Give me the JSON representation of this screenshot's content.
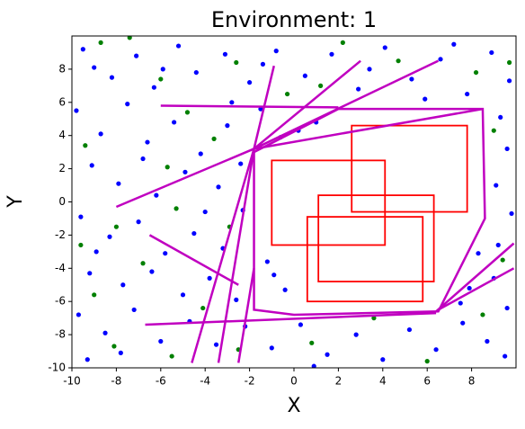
{
  "chart_data": {
    "type": "scatter",
    "title": "Environment: 1",
    "x_label": "X",
    "y_label": "Y",
    "xlim": [
      -10,
      10
    ],
    "ylim": [
      -10,
      10
    ],
    "xticks": [
      -10,
      -8,
      -6,
      -4,
      -2,
      0,
      2,
      4,
      6,
      8
    ],
    "yticks": [
      -10,
      -8,
      -6,
      -4,
      -2,
      0,
      2,
      4,
      6,
      8
    ],
    "series": [
      {
        "color": "#0000ff",
        "x": [
          -9.5,
          -8.2,
          -7.1,
          -6.3,
          -5.2,
          -4.4,
          -3.1,
          -2.0,
          -0.8,
          0.5,
          1.7,
          2.9,
          4.1,
          5.3,
          6.6,
          7.8,
          8.9,
          9.7,
          -9.8,
          -8.7,
          -7.5,
          -6.6,
          -5.4,
          -4.2,
          -3.0,
          -9.1,
          -7.9,
          -6.2,
          -4.9,
          -3.4,
          -2.4,
          9.3,
          9.6,
          9.1,
          9.8,
          9.2,
          -9.6,
          -8.3,
          -7.0,
          -5.8,
          -4.5,
          -3.2,
          -2.3,
          -9.2,
          -7.7,
          -6.4,
          -5.0,
          -3.8,
          -2.6,
          -9.7,
          -8.5,
          -7.2,
          -6.0,
          -4.7,
          -3.5,
          -2.2,
          -1.0,
          0.3,
          1.5,
          2.8,
          4.0,
          5.2,
          6.4,
          7.6,
          8.7,
          9.5,
          7.9,
          9.0,
          8.3,
          7.5,
          9.6,
          -9.3,
          -7.8,
          -0.9,
          -0.4,
          -1.2,
          0.2,
          -0.6,
          1.0,
          -1.5,
          -9.0,
          -5.9,
          -1.4,
          3.4,
          7.2,
          -8.9,
          -4.0,
          -6.8,
          -2.8,
          5.9,
          0.9
        ],
        "y": [
          9.2,
          7.5,
          8.8,
          6.9,
          9.4,
          7.8,
          8.9,
          7.2,
          9.1,
          7.6,
          8.9,
          6.8,
          9.3,
          7.4,
          8.6,
          6.5,
          9.0,
          7.3,
          5.5,
          4.1,
          5.9,
          3.6,
          4.8,
          2.9,
          4.6,
          2.2,
          1.1,
          0.4,
          1.8,
          0.9,
          2.3,
          5.1,
          3.2,
          1.0,
          -0.7,
          -2.6,
          -0.9,
          -2.1,
          -1.2,
          -3.1,
          -1.9,
          -2.8,
          -0.5,
          -4.3,
          -5.0,
          -4.2,
          -5.6,
          -4.6,
          -5.9,
          -6.8,
          -7.9,
          -6.5,
          -8.4,
          -7.2,
          -8.6,
          -7.5,
          -8.8,
          -7.4,
          -9.2,
          -8.0,
          -9.5,
          -7.7,
          -8.9,
          -7.3,
          -8.4,
          -9.3,
          -5.2,
          -4.6,
          -3.1,
          -6.1,
          -6.4,
          -9.5,
          -9.1,
          -4.4,
          -5.3,
          -3.6,
          4.3,
          3.9,
          4.8,
          5.6,
          8.1,
          8.0,
          8.3,
          8.0,
          9.5,
          -3.0,
          -0.6,
          2.6,
          6.0,
          6.2,
          -9.9
        ]
      },
      {
        "color": "#008000",
        "x": [
          -8.7,
          -6.0,
          -2.6,
          1.2,
          4.7,
          8.2,
          -9.4,
          -5.7,
          -3.6,
          -8.0,
          -5.3,
          -2.9,
          -9.0,
          -6.8,
          -4.1,
          -8.1,
          -5.5,
          -2.5,
          0.8,
          3.6,
          6.0,
          8.5,
          9.4,
          9.0,
          9.7,
          -7.4,
          2.2,
          -0.3,
          -9.6,
          -4.8
        ],
        "y": [
          9.6,
          7.4,
          8.4,
          7.0,
          8.5,
          7.8,
          3.4,
          2.1,
          3.8,
          -1.5,
          -0.4,
          -1.5,
          -5.6,
          -3.7,
          -6.4,
          -8.7,
          -9.3,
          -8.9,
          -8.5,
          -7.0,
          -9.6,
          -6.8,
          -3.5,
          4.3,
          8.4,
          9.9,
          9.6,
          6.5,
          -2.6,
          5.4
        ]
      }
    ],
    "rect_color": "#ff0000",
    "rectangles": [
      {
        "x": [
          -1.0,
          4.1
        ],
        "y": [
          -2.6,
          2.5
        ]
      },
      {
        "x": [
          2.6,
          7.8
        ],
        "y": [
          -0.6,
          4.6
        ]
      },
      {
        "x": [
          1.1,
          6.3
        ],
        "y": [
          -4.8,
          0.4
        ]
      },
      {
        "x": [
          0.6,
          5.8
        ],
        "y": [
          -6.0,
          -0.9
        ]
      }
    ],
    "line_color": "#c000c0",
    "lines": [
      {
        "x": [
          -1.8,
          -1.8,
          0.0,
          6.5,
          8.6,
          8.5,
          2.0,
          -1.8
        ],
        "y": [
          3.0,
          -6.5,
          -6.8,
          -6.6,
          -1.0,
          5.6,
          5.6,
          3.0
        ]
      },
      {
        "x": [
          -1.8,
          -8.0
        ],
        "y": [
          3.2,
          -0.3
        ]
      },
      {
        "x": [
          -1.8,
          -4.6
        ],
        "y": [
          3.2,
          -9.7
        ]
      },
      {
        "x": [
          -1.8,
          -3.4
        ],
        "y": [
          3.2,
          -9.7
        ]
      },
      {
        "x": [
          -1.8,
          3.0
        ],
        "y": [
          3.2,
          8.5
        ]
      },
      {
        "x": [
          -1.8,
          6.5
        ],
        "y": [
          3.2,
          8.5
        ]
      },
      {
        "x": [
          -1.8,
          -0.9
        ],
        "y": [
          3.2,
          8.2
        ]
      },
      {
        "x": [
          -1.8,
          8.5
        ],
        "y": [
          3.2,
          5.6
        ]
      },
      {
        "x": [
          -6.0,
          2.0
        ],
        "y": [
          5.8,
          5.7
        ]
      },
      {
        "x": [
          -6.5,
          -2.5
        ],
        "y": [
          -2.0,
          -5.0
        ]
      },
      {
        "x": [
          -6.7,
          6.4
        ],
        "y": [
          -7.4,
          -6.7
        ]
      },
      {
        "x": [
          6.4,
          9.9
        ],
        "y": [
          -6.6,
          -2.5
        ]
      },
      {
        "x": [
          6.5,
          9.9
        ],
        "y": [
          -6.5,
          -4.0
        ]
      },
      {
        "x": [
          -1.8,
          -2.5
        ],
        "y": [
          -4.0,
          -9.7
        ]
      }
    ]
  }
}
